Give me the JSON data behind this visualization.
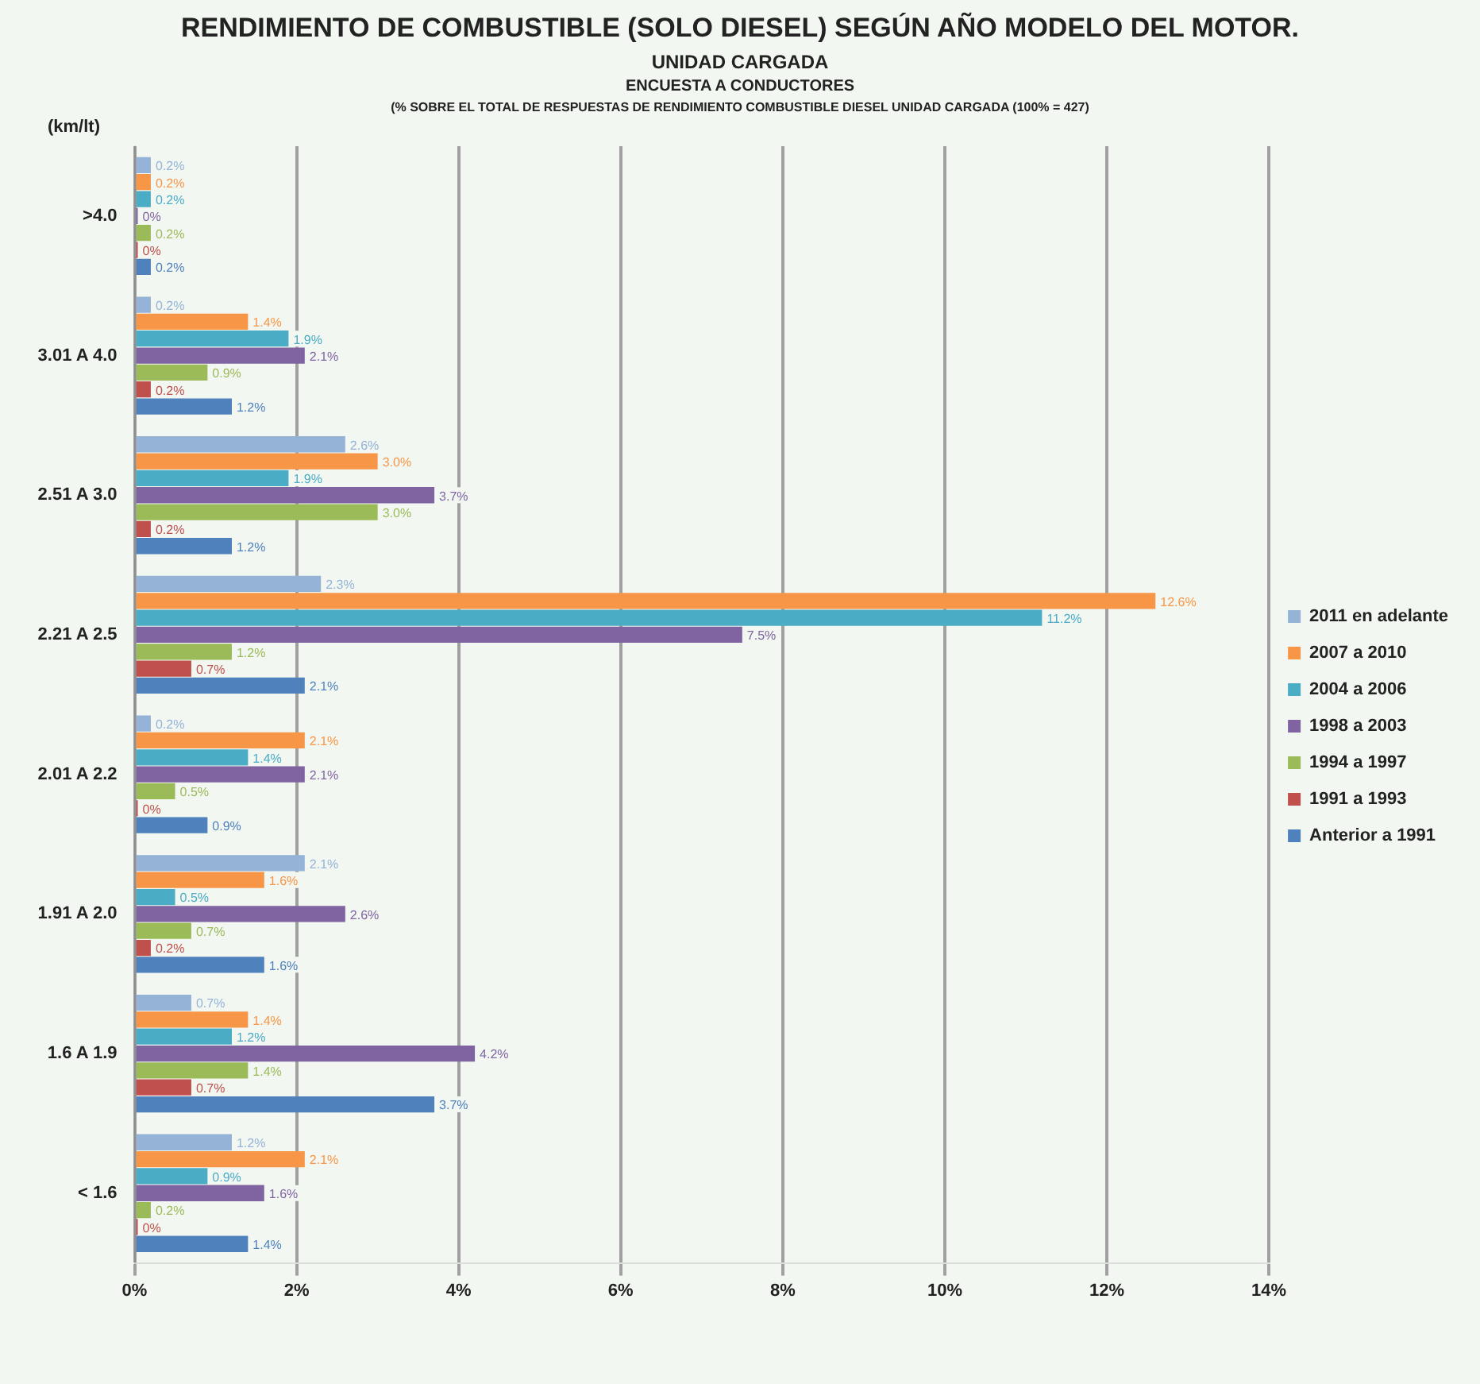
{
  "chart_data": {
    "type": "bar",
    "orientation": "horizontal",
    "title": "RENDIMIENTO DE COMBUSTIBLE (SOLO DIESEL) SEGÚN AÑO MODELO DEL MOTOR.",
    "subtitle": "UNIDAD CARGADA",
    "annotations": [
      "ENCUESTA A CONDUCTORES",
      "(% SOBRE EL TOTAL DE RESPUESTAS DE RENDIMIENTO COMBUSTIBLE DIESEL UNIDAD CARGADA (100% = 427)"
    ],
    "ylabel": "(km/lt)",
    "categories": [
      ">4.0",
      "3.01 A 4.0",
      "2.51 A 3.0",
      "2.21 A 2.5",
      "2.01 A 2.2",
      "1.91 A 2.0",
      "1.6 A 1.9",
      "< 1.6"
    ],
    "series": [
      {
        "name": "2011 en adelante",
        "color": "#95b3d7",
        "values": [
          0.2,
          0.2,
          2.6,
          2.3,
          0.2,
          2.1,
          0.7,
          1.2
        ],
        "value_labels": [
          "0.2%",
          "0.2%",
          "2.6%",
          "2.3%",
          "0.2%",
          "2.1%",
          "0.7%",
          "1.2%"
        ]
      },
      {
        "name": "2007 a 2010",
        "color": "#f79646",
        "values": [
          0.2,
          1.4,
          3.0,
          12.6,
          2.1,
          1.6,
          1.4,
          2.1
        ],
        "value_labels": [
          "0.2%",
          "1.4%",
          "3.0%",
          "12.6%",
          "2.1%",
          "1.6%",
          "1.4%",
          "2.1%"
        ]
      },
      {
        "name": "2004 a 2006",
        "color": "#4bacc6",
        "values": [
          0.2,
          1.9,
          1.9,
          11.2,
          1.4,
          0.5,
          1.2,
          0.9
        ],
        "value_labels": [
          "0.2%",
          "1.9%",
          "1.9%",
          "11.2%",
          "1.4%",
          "0.5%",
          "1.2%",
          "0.9%"
        ]
      },
      {
        "name": "1998 a 2003",
        "color": "#8064a2",
        "values": [
          0,
          2.1,
          3.7,
          7.5,
          2.1,
          2.6,
          4.2,
          1.6
        ],
        "value_labels": [
          "0%",
          "2.1%",
          "3.7%",
          "7.5%",
          "2.1%",
          "2.6%",
          "4.2%",
          "1.6%"
        ]
      },
      {
        "name": "1994 a 1997",
        "color": "#9bbb59",
        "values": [
          0.2,
          0.9,
          3.0,
          1.2,
          0.5,
          0.7,
          1.4,
          0.2
        ],
        "value_labels": [
          "0.2%",
          "0.9%",
          "3.0%",
          "1.2%",
          "0.5%",
          "0.7%",
          "1.4%",
          "0.2%"
        ]
      },
      {
        "name": "1991 a 1993",
        "color": "#c0504d",
        "values": [
          0,
          0.2,
          0.2,
          0.7,
          0,
          0.2,
          0.7,
          0
        ],
        "value_labels": [
          "0%",
          "0.2%",
          "0.2%",
          "0.7%",
          "0%",
          "0.2%",
          "0.7%",
          "0%"
        ]
      },
      {
        "name": "Anterior a 1991",
        "color": "#4f81bd",
        "values": [
          0.2,
          1.2,
          1.2,
          2.1,
          0.9,
          1.6,
          3.7,
          1.4
        ],
        "value_labels": [
          "0.2%",
          "1.2%",
          "1.2%",
          "2.1%",
          "0.9%",
          "1.6%",
          "3.7%",
          "1.4%"
        ]
      }
    ],
    "xlim": [
      0,
      14
    ],
    "xticks": [
      {
        "value": 0,
        "label": "0%"
      },
      {
        "value": 2,
        "label": "2%"
      },
      {
        "value": 4,
        "label": "4%"
      },
      {
        "value": 6,
        "label": "6%"
      },
      {
        "value": 8,
        "label": "8%"
      },
      {
        "value": 10,
        "label": "10%"
      },
      {
        "value": 12,
        "label": "12%"
      },
      {
        "value": 14,
        "label": "14%"
      }
    ],
    "grid": "x",
    "legend": "right"
  }
}
